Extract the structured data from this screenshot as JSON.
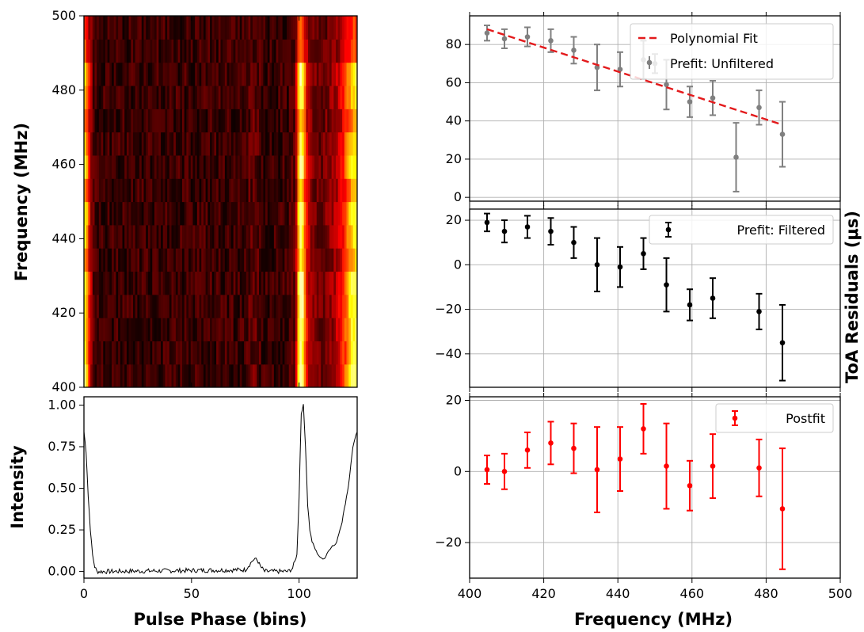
{
  "chart_data": [
    {
      "type": "heatmap",
      "ylabel": "Frequency (MHz)",
      "ylim": [
        400,
        500
      ],
      "yticks": [
        400,
        420,
        440,
        460,
        480,
        500
      ],
      "xlim": [
        0,
        127
      ],
      "colormap": "hot",
      "channels": 16,
      "bins": 128,
      "channel_gains": [
        1.0,
        0.88,
        0.92,
        0.95,
        0.98,
        0.75,
        0.85,
        0.95,
        0.72,
        0.9,
        0.85,
        0.68,
        0.82,
        0.88,
        0.55,
        0.5
      ]
    },
    {
      "type": "line",
      "xlabel": "Pulse Phase (bins)",
      "ylabel": "Intensity",
      "xlim": [
        0,
        127
      ],
      "ylim": [
        -0.04,
        1.05
      ],
      "xticks": [
        0,
        50,
        100
      ],
      "yticks": [
        0.0,
        0.25,
        0.5,
        0.75,
        1.0
      ],
      "ytick_labels": [
        "0.00",
        "0.25",
        "0.50",
        "0.75",
        "1.00"
      ],
      "color": "#000000",
      "profile_anchors": [
        [
          0,
          0.84
        ],
        [
          1,
          0.72
        ],
        [
          2,
          0.45
        ],
        [
          3,
          0.25
        ],
        [
          4,
          0.1
        ],
        [
          5,
          0.03
        ],
        [
          6,
          0.0
        ],
        [
          10,
          0.0
        ],
        [
          75,
          0.01
        ],
        [
          78,
          0.06
        ],
        [
          80,
          0.08
        ],
        [
          82,
          0.03
        ],
        [
          84,
          0.0
        ],
        [
          95,
          0.0
        ],
        [
          97,
          0.02
        ],
        [
          99,
          0.1
        ],
        [
          100,
          0.45
        ],
        [
          101,
          0.95
        ],
        [
          102,
          1.0
        ],
        [
          103,
          0.75
        ],
        [
          104,
          0.4
        ],
        [
          105,
          0.25
        ],
        [
          106,
          0.18
        ],
        [
          108,
          0.12
        ],
        [
          110,
          0.08
        ],
        [
          112,
          0.08
        ],
        [
          113,
          0.11
        ],
        [
          115,
          0.15
        ],
        [
          117,
          0.16
        ],
        [
          120,
          0.3
        ],
        [
          123,
          0.52
        ],
        [
          125,
          0.75
        ],
        [
          127,
          0.84
        ]
      ]
    },
    {
      "type": "scatter",
      "xlim": [
        400,
        500
      ],
      "ylim": [
        -2,
        95
      ],
      "yticks": [
        0,
        20,
        40,
        60,
        80
      ],
      "legend": [
        "Polynomial Fit",
        "Prefit: Unfiltered"
      ],
      "legend_position": "top-right",
      "grid": true,
      "series": [
        {
          "name": "Prefit: Unfiltered",
          "color": "#808080",
          "x": [
            404.7,
            409.4,
            415.6,
            421.9,
            428.1,
            434.4,
            440.6,
            446.9,
            450.0,
            453.1,
            459.4,
            465.6,
            471.9,
            478.1,
            484.4
          ],
          "y": [
            86,
            83,
            84,
            82,
            77,
            68,
            67,
            72,
            70,
            59,
            50,
            52,
            21,
            47,
            33
          ],
          "err": [
            4,
            5,
            5,
            6,
            7,
            12,
            9,
            10,
            5,
            13,
            8,
            9,
            18,
            9,
            17
          ]
        },
        {
          "name": "Polynomial Fit",
          "color": "#e31a1c",
          "style": "dashed",
          "x": [
            404.7,
            484.4
          ],
          "y": [
            88,
            38
          ]
        }
      ]
    },
    {
      "type": "scatter",
      "xlim": [
        400,
        500
      ],
      "ylim": [
        -55,
        25
      ],
      "yticks": [
        -40,
        -20,
        0,
        20
      ],
      "ytick_labels": [
        "−40",
        "−20",
        "0",
        "20"
      ],
      "legend": [
        "Prefit: Filtered"
      ],
      "legend_position": "top-right",
      "grid": true,
      "series": [
        {
          "name": "Prefit: Filtered",
          "color": "#000000",
          "x": [
            404.7,
            409.4,
            415.6,
            421.9,
            428.1,
            434.4,
            440.6,
            446.9,
            453.1,
            459.4,
            465.6,
            478.1,
            484.4
          ],
          "y": [
            19,
            15,
            17,
            15,
            10,
            0,
            -1,
            5,
            -9,
            -18,
            -15,
            -21,
            -35
          ],
          "err": [
            4,
            5,
            5,
            6,
            7,
            12,
            9,
            7,
            12,
            7,
            9,
            8,
            17
          ]
        }
      ]
    },
    {
      "type": "scatter",
      "xlabel": "Frequency (MHz)",
      "xlim": [
        400,
        500
      ],
      "ylim": [
        -30,
        21
      ],
      "xticks": [
        400,
        420,
        440,
        460,
        480,
        500
      ],
      "yticks": [
        -20,
        0,
        20
      ],
      "ytick_labels": [
        "−20",
        "0",
        "20"
      ],
      "legend": [
        "Postfit"
      ],
      "legend_position": "top-right",
      "grid": true,
      "series": [
        {
          "name": "Postfit",
          "color": "#ff0000",
          "x": [
            404.7,
            409.4,
            415.6,
            421.9,
            428.1,
            434.4,
            440.6,
            446.9,
            453.1,
            459.4,
            465.6,
            478.1,
            484.4
          ],
          "y": [
            0.5,
            0,
            6,
            8,
            6.5,
            0.5,
            3.5,
            12,
            1.5,
            -4,
            1.5,
            1,
            -10.5
          ],
          "err": [
            4,
            5,
            5,
            6,
            7,
            12,
            9,
            7,
            12,
            7,
            9,
            8,
            17
          ]
        }
      ]
    }
  ],
  "shared_ylabel": "ToA Residuals (μs)"
}
